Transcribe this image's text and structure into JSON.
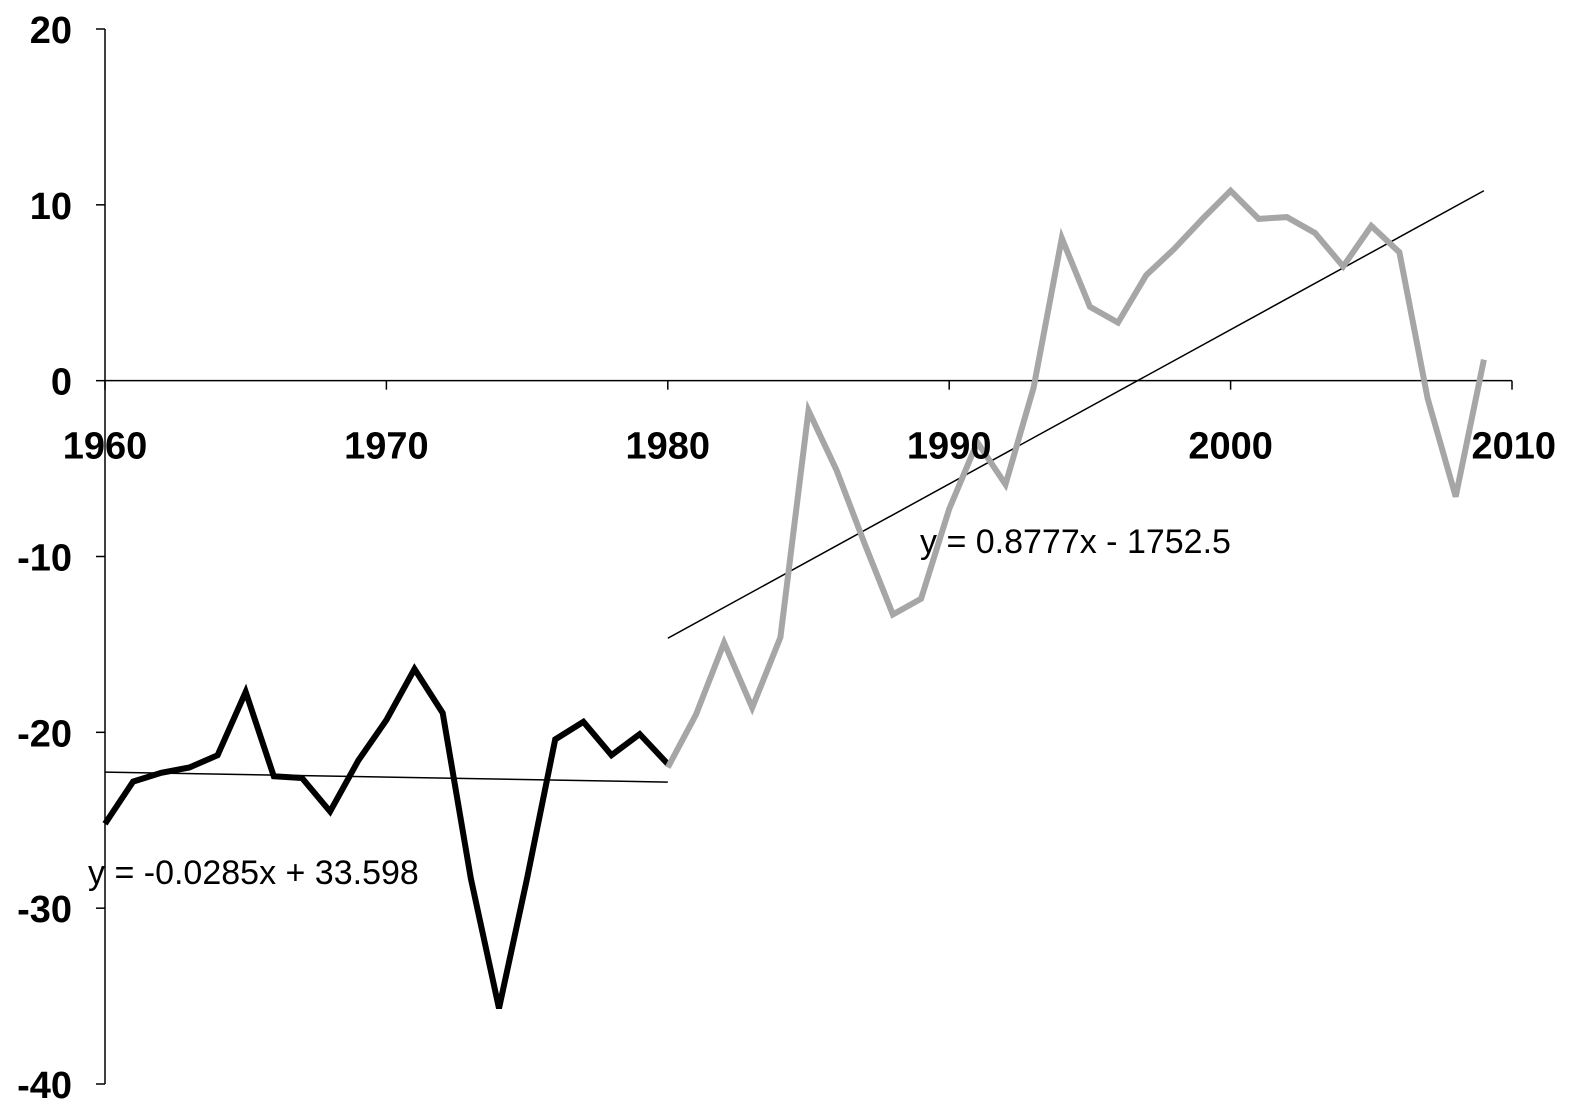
{
  "chart_data": {
    "type": "line",
    "title": "",
    "xlabel": "",
    "ylabel": "",
    "xlim": [
      1960,
      2010
    ],
    "ylim": [
      -40,
      20
    ],
    "x_ticks": [
      1960,
      1970,
      1980,
      1990,
      2000,
      2010
    ],
    "y_ticks": [
      20,
      10,
      0,
      -10,
      -20,
      -30,
      -40
    ],
    "x_tick_labels": [
      "1960",
      "1970",
      "1980",
      "1990",
      "2000",
      "2010"
    ],
    "y_tick_labels": [
      "20",
      "10",
      "0",
      "-10",
      "-20",
      "-30",
      "-40"
    ],
    "grid": false,
    "legend": "none",
    "series": [
      {
        "color": "#000000",
        "x": [
          1960,
          1961,
          1962,
          1963,
          1964,
          1965,
          1966,
          1967,
          1968,
          1969,
          1970,
          1971,
          1972,
          1973,
          1974,
          1975,
          1976,
          1977,
          1978,
          1979,
          1980
        ],
        "y": [
          -25.2,
          -22.8,
          -22.3,
          -22.0,
          -21.3,
          -17.7,
          -22.5,
          -22.6,
          -24.5,
          -21.6,
          -19.3,
          -16.4,
          -18.9,
          -28.3,
          -35.7,
          -28.3,
          -20.4,
          -19.4,
          -21.3,
          -20.1,
          -21.8
        ]
      },
      {
        "color": "#a6a6a6",
        "x": [
          1980,
          1981,
          1982,
          1983,
          1984,
          1985,
          1986,
          1987,
          1988,
          1989,
          1990,
          1991,
          1992,
          1993,
          1994,
          1995,
          1996,
          1997,
          1998,
          1999,
          2000,
          2001,
          2002,
          2003,
          2004,
          2005,
          2006,
          2007,
          2008,
          2009
        ],
        "y": [
          -22.0,
          -19.0,
          -14.9,
          -18.6,
          -14.6,
          -1.7,
          -5.1,
          -9.3,
          -13.3,
          -12.4,
          -7.3,
          -3.5,
          -5.9,
          -0.4,
          8.1,
          4.2,
          3.3,
          6.0,
          7.5,
          9.2,
          10.8,
          9.2,
          9.3,
          8.4,
          6.5,
          8.8,
          7.3,
          -1.0,
          -6.6,
          1.2
        ]
      }
    ],
    "trendlines": [
      {
        "x": [
          1960,
          1980
        ],
        "y": [
          -22.26,
          -22.83
        ],
        "color": "#000000",
        "equation": "y = -0.0285x + 33.598"
      },
      {
        "x": [
          1980,
          2009
        ],
        "y": [
          -14.65,
          10.8
        ],
        "color": "#000000",
        "equation": "y = 0.8777x - 1752.5"
      }
    ]
  }
}
